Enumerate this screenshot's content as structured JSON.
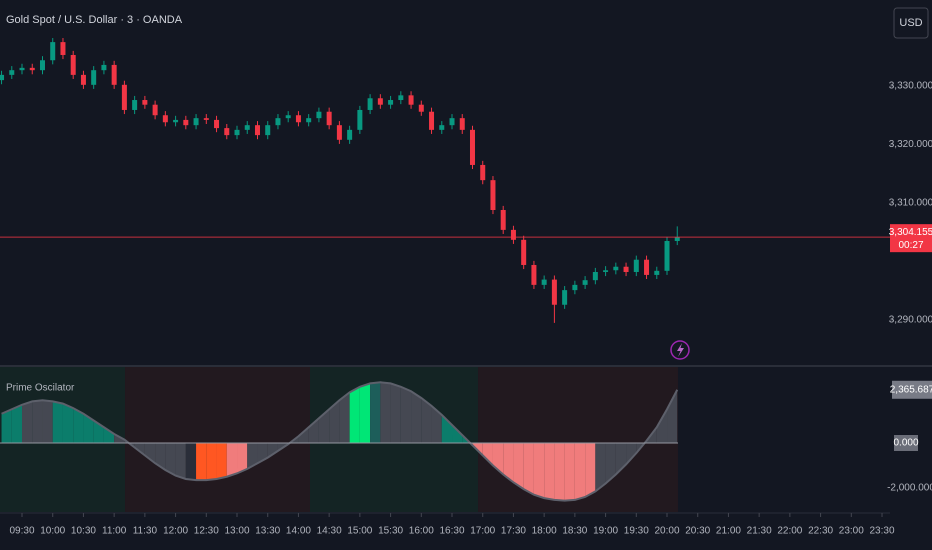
{
  "chart_data": [
    {
      "type": "candlestick",
      "title": "Gold Spot / U.S. Dollar · 3 · OANDA",
      "currency": "USD",
      "up_color": "#089981",
      "down_color": "#f23645",
      "x": [
        550,
        560,
        570,
        580,
        590,
        600,
        610,
        620,
        630,
        640,
        650,
        660,
        670,
        680,
        690,
        700,
        710,
        720,
        730,
        740,
        750,
        760,
        770,
        780,
        790,
        800,
        810,
        820,
        830,
        840,
        850,
        860,
        870,
        880,
        890,
        900,
        910,
        920,
        930,
        940,
        950,
        960,
        970,
        980,
        990,
        1000,
        1010,
        1020,
        1030,
        1040,
        1050,
        1060,
        1070,
        1080,
        1090,
        1100,
        1110,
        1120,
        1130,
        1140,
        1150,
        1160,
        1170,
        1180,
        1190,
        1200,
        1210
      ],
      "open": [
        3331.0,
        3331.9,
        3332.7,
        3333.1,
        3332.7,
        3334.4,
        3337.5,
        3335.3,
        3331.9,
        3330.2,
        3332.7,
        3333.6,
        3330.2,
        3325.9,
        3327.6,
        3326.8,
        3325.0,
        3323.8,
        3324.2,
        3323.3,
        3324.5,
        3324.2,
        3322.8,
        3321.6,
        3322.5,
        3323.3,
        3321.6,
        3323.3,
        3324.5,
        3325.0,
        3323.8,
        3324.5,
        3325.6,
        3323.3,
        3320.8,
        3322.5,
        3325.9,
        3327.9,
        3326.8,
        3327.6,
        3328.4,
        3326.8,
        3325.6,
        3322.5,
        3323.3,
        3324.5,
        3322.5,
        3316.5,
        3313.9,
        3308.8,
        3305.4,
        3303.7,
        3299.4,
        3296.0,
        3296.9,
        3292.6,
        3295.1,
        3296.0,
        3296.8,
        3298.2,
        3298.5,
        3299.1,
        3298.2,
        3300.3,
        3297.7,
        3298.4,
        3303.5
      ],
      "high": [
        3332.6,
        3333.4,
        3333.8,
        3333.8,
        3335.1,
        3338.2,
        3338.2,
        3336.0,
        3332.6,
        3333.4,
        3334.3,
        3334.3,
        3330.9,
        3328.3,
        3328.3,
        3327.5,
        3325.7,
        3324.9,
        3324.9,
        3325.2,
        3325.2,
        3324.9,
        3323.5,
        3323.2,
        3324.0,
        3324.0,
        3324.0,
        3325.2,
        3325.7,
        3325.7,
        3325.2,
        3326.3,
        3326.3,
        3324.0,
        3323.2,
        3326.6,
        3328.6,
        3328.6,
        3328.3,
        3329.1,
        3329.1,
        3327.5,
        3326.3,
        3324.0,
        3325.2,
        3325.2,
        3323.2,
        3317.2,
        3314.6,
        3309.5,
        3306.1,
        3304.4,
        3300.1,
        3297.6,
        3297.6,
        3295.8,
        3296.7,
        3297.5,
        3298.9,
        3299.2,
        3299.8,
        3299.8,
        3301.0,
        3301.0,
        3299.1,
        3304.2,
        3306.0
      ],
      "low": [
        3330.3,
        3331.2,
        3332.0,
        3332.0,
        3332.0,
        3333.7,
        3334.6,
        3331.2,
        3329.5,
        3329.5,
        3332.0,
        3329.5,
        3325.2,
        3325.2,
        3326.1,
        3324.3,
        3323.1,
        3323.1,
        3322.6,
        3322.6,
        3323.5,
        3322.1,
        3320.9,
        3320.9,
        3321.8,
        3320.9,
        3320.9,
        3322.6,
        3323.8,
        3323.1,
        3323.1,
        3323.8,
        3322.6,
        3320.1,
        3320.1,
        3321.8,
        3325.2,
        3326.1,
        3326.1,
        3326.9,
        3326.1,
        3324.9,
        3321.8,
        3321.8,
        3322.6,
        3321.8,
        3315.8,
        3313.2,
        3308.1,
        3304.7,
        3303.0,
        3298.7,
        3295.3,
        3295.3,
        3289.5,
        3291.9,
        3294.4,
        3295.3,
        3296.1,
        3297.5,
        3297.8,
        3297.5,
        3297.5,
        3297.0,
        3297.0,
        3297.7,
        3302.8
      ],
      "close": [
        3331.9,
        3332.7,
        3333.1,
        3332.7,
        3334.4,
        3337.5,
        3335.3,
        3331.9,
        3330.2,
        3332.7,
        3333.6,
        3330.2,
        3325.9,
        3327.6,
        3326.8,
        3325.0,
        3323.8,
        3324.2,
        3323.3,
        3324.5,
        3324.2,
        3322.8,
        3321.6,
        3322.5,
        3323.3,
        3321.6,
        3323.3,
        3324.5,
        3325.0,
        3323.8,
        3324.5,
        3325.6,
        3323.3,
        3320.8,
        3322.5,
        3325.9,
        3327.9,
        3326.8,
        3327.6,
        3328.4,
        3326.8,
        3325.6,
        3322.5,
        3323.3,
        3324.5,
        3322.5,
        3316.5,
        3313.9,
        3308.8,
        3305.4,
        3303.7,
        3299.4,
        3296.0,
        3296.9,
        3292.6,
        3295.1,
        3296.0,
        3296.8,
        3298.2,
        3298.5,
        3299.1,
        3298.2,
        3300.3,
        3297.7,
        3298.4,
        3303.5,
        3304.155
      ],
      "last_label": "3,304.155",
      "countdown": "00:27",
      "xlim": [
        548.5,
        1417.8
      ],
      "xticks": [
        {
          "value": 570,
          "label": "09:30"
        },
        {
          "value": 600,
          "label": "10:00"
        },
        {
          "value": 630,
          "label": "10:30"
        },
        {
          "value": 660,
          "label": "11:00"
        },
        {
          "value": 690,
          "label": "11:30"
        },
        {
          "value": 720,
          "label": "12:00"
        },
        {
          "value": 750,
          "label": "12:30"
        },
        {
          "value": 780,
          "label": "13:00"
        },
        {
          "value": 810,
          "label": "13:30"
        },
        {
          "value": 840,
          "label": "14:00"
        },
        {
          "value": 870,
          "label": "14:30"
        },
        {
          "value": 900,
          "label": "15:00"
        },
        {
          "value": 930,
          "label": "15:30"
        },
        {
          "value": 960,
          "label": "16:00"
        },
        {
          "value": 990,
          "label": "16:30"
        },
        {
          "value": 1020,
          "label": "17:00"
        },
        {
          "value": 1050,
          "label": "17:30"
        },
        {
          "value": 1080,
          "label": "18:00"
        },
        {
          "value": 1110,
          "label": "18:30"
        },
        {
          "value": 1140,
          "label": "19:00"
        },
        {
          "value": 1170,
          "label": "19:30"
        },
        {
          "value": 1200,
          "label": "20:00"
        },
        {
          "value": 1230,
          "label": "20:30"
        },
        {
          "value": 1260,
          "label": "21:00"
        },
        {
          "value": 1290,
          "label": "21:30"
        },
        {
          "value": 1320,
          "label": "22:00"
        },
        {
          "value": 1350,
          "label": "22:30"
        },
        {
          "value": 1380,
          "label": "23:00"
        },
        {
          "value": 1410,
          "label": "23:30"
        }
      ],
      "ylim": [
        3282.3,
        3344.7
      ],
      "yticks": [
        {
          "value": 3330,
          "label": "3,330.000"
        },
        {
          "value": 3320,
          "label": "3,320.000"
        },
        {
          "value": 3310,
          "label": "3,310.000"
        },
        {
          "value": 3290,
          "label": "3,290.000"
        }
      ]
    },
    {
      "type": "area",
      "title": "Prime Oscilator",
      "line_color": "#5d606b",
      "values": [
        1300,
        1500,
        1700,
        1850,
        1900,
        1850,
        1750,
        1550,
        1300,
        1000,
        700,
        400,
        150,
        -200,
        -550,
        -900,
        -1200,
        -1450,
        -1600,
        -1650,
        -1650,
        -1600,
        -1500,
        -1350,
        -1150,
        -900,
        -650,
        -350,
        -50,
        300,
        700,
        1100,
        1500,
        1900,
        2250,
        2500,
        2650,
        2700,
        2650,
        2500,
        2300,
        2000,
        1650,
        1250,
        800,
        350,
        -100,
        -550,
        -1000,
        -1400,
        -1750,
        -2050,
        -2300,
        -2450,
        -2530,
        -2560,
        -2530,
        -2400,
        -2150,
        -1800,
        -1400,
        -950,
        -450,
        100,
        700,
        1500,
        2365.687
      ],
      "colors": [
        "#0b7d6b",
        "#0b7d6b",
        "#454852",
        "#454852",
        "#454852",
        "#0b7d6b",
        "#0b7d6b",
        "#0b7d6b",
        "#0b7d6b",
        "#0b7d6b",
        "#0b7d6b",
        "#454852",
        "#454852",
        "#454852",
        "#454852",
        "#454852",
        "#454852",
        "#454852",
        "#2a2e39",
        "#ff5722",
        "#ff5722",
        "#ff5722",
        "#f07c7c",
        "#f07c7c",
        "#454852",
        "#454852",
        "#454852",
        "#454852",
        "#454852",
        "#454852",
        "#454852",
        "#454852",
        "#454852",
        "#454852",
        "#00e676",
        "#00e676",
        "#1d5e5a",
        "#454852",
        "#454852",
        "#454852",
        "#454852",
        "#454852",
        "#454852",
        "#0b7d6b",
        "#0b7d6b",
        "#0b7d6b",
        "#f07c7c",
        "#f07c7c",
        "#f07c7c",
        "#f07c7c",
        "#f07c7c",
        "#f07c7c",
        "#f07c7c",
        "#f07c7c",
        "#f07c7c",
        "#f07c7c",
        "#f07c7c",
        "#f07c7c",
        "#454852",
        "#454852",
        "#454852",
        "#454852",
        "#454852",
        "#454852",
        "#454852",
        "#454852",
        "#454852"
      ],
      "background_zones": [
        {
          "from": 548.5,
          "to": 670.6,
          "color": "#142424"
        },
        {
          "from": 670.6,
          "to": 851.3,
          "color": "#22191f"
        },
        {
          "from": 851.3,
          "to": 1015.4,
          "color": "#142424"
        },
        {
          "from": 1015.4,
          "to": 1210.7,
          "color": "#22191f"
        }
      ],
      "last_label": "2,365.687",
      "ylim": [
        -3067,
        3378
      ],
      "yticks": [
        {
          "value": 0,
          "label": "0.000"
        },
        {
          "value": -2000,
          "label": "-2,000.000"
        }
      ]
    }
  ]
}
